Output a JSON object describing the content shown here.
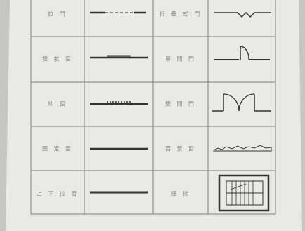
{
  "table": {
    "rows": [
      [
        "拉 門",
        "折 疊 式 門"
      ],
      [
        "雙 拉 窗",
        "單 開 門"
      ],
      [
        "紗 窗",
        "雙 開 門"
      ],
      [
        "固 定 窗",
        "百 葉 窗"
      ],
      [
        "上 下 拉 窗",
        "樓 梯"
      ]
    ]
  }
}
